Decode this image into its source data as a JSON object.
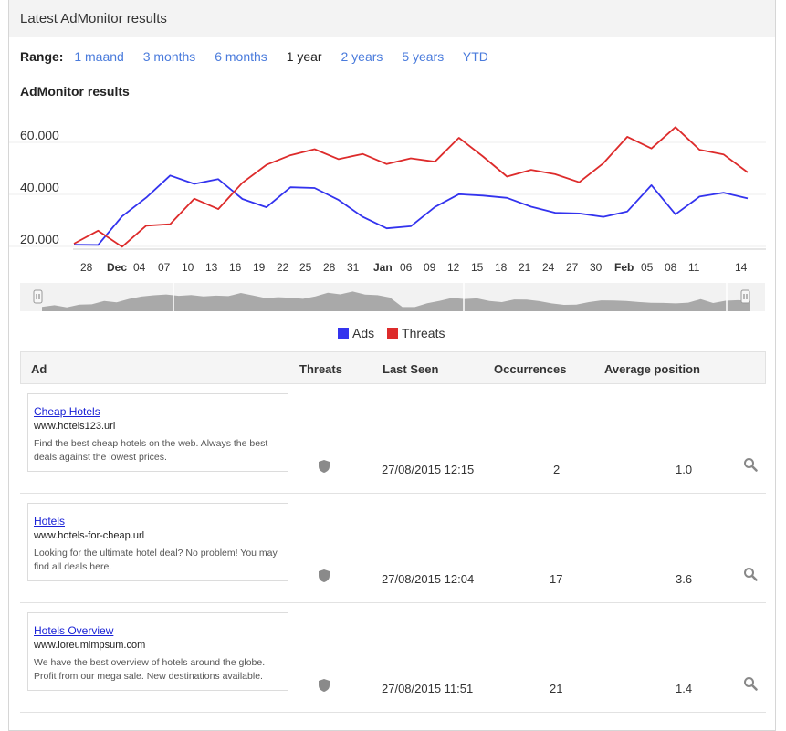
{
  "panel": {
    "title": "Latest AdMonitor results"
  },
  "range": {
    "label": "Range:",
    "options": [
      "1 maand",
      "3 months",
      "6 months",
      "1 year",
      "2 years",
      "5 years",
      "YTD"
    ],
    "selected": "1 year"
  },
  "chart_data": {
    "type": "line",
    "title": "AdMonitor results",
    "y_ticks": [
      "20.000",
      "40.000",
      "60.000"
    ],
    "ylim": [
      20000,
      60000
    ],
    "x_tick_labels": [
      "28",
      "Dec",
      "04",
      "07",
      "10",
      "13",
      "16",
      "19",
      "22",
      "25",
      "28",
      "31",
      "Jan",
      "06",
      "09",
      "12",
      "15",
      "18",
      "21",
      "24",
      "27",
      "30",
      "Feb",
      "05",
      "08",
      "11",
      "14"
    ],
    "x_tick_bold": [
      "Dec",
      "Jan",
      "Feb"
    ],
    "series": [
      {
        "name": "Ads",
        "color": "#3333ee",
        "values": [
          19600,
          19500,
          30500,
          37700,
          46200,
          43000,
          44800,
          37200,
          34000,
          41700,
          41400,
          36800,
          30300,
          25900,
          26700,
          34100,
          39000,
          38500,
          37600,
          34200,
          31900,
          31600,
          30300,
          32400,
          42500,
          31300,
          38100,
          39600,
          37400
        ]
      },
      {
        "name": "Threats",
        "color": "#dd2b2b",
        "values": [
          20000,
          25000,
          18800,
          26900,
          27500,
          37300,
          33300,
          43400,
          50300,
          54000,
          56300,
          52500,
          54500,
          50600,
          52800,
          51500,
          60700,
          53500,
          45800,
          48400,
          46700,
          43600,
          50900,
          61100,
          56600,
          64800,
          56100,
          54300,
          47400
        ]
      }
    ],
    "legend": [
      "Ads",
      "Threats"
    ],
    "legend_position": "bottom"
  },
  "table": {
    "headers": {
      "ad": "Ad",
      "threats": "Threats",
      "last_seen": "Last Seen",
      "occurrences": "Occurrences",
      "avg_position": "Average position"
    },
    "rows": [
      {
        "title": "Cheap Hotels",
        "url": "www.hotels123.url",
        "desc": "Find the best cheap hotels on the web. Always the best deals against the lowest prices.",
        "last_seen": "27/08/2015 12:15",
        "occurrences": "2",
        "avg_position": "1.0"
      },
      {
        "title": "Hotels",
        "url": "www.hotels-for-cheap.url",
        "desc": "Looking for the ultimate hotel deal? No problem! You may find all deals here.",
        "last_seen": "27/08/2015 12:04",
        "occurrences": "17",
        "avg_position": "3.6"
      },
      {
        "title": "Hotels Overview",
        "url": "www.loreumimpsum.com",
        "desc": "We have the best overview of hotels around the globe. Profit from our mega sale. New destinations available.",
        "last_seen": "27/08/2015 11:51",
        "occurrences": "21",
        "avg_position": "1.4"
      }
    ]
  },
  "icons": {
    "threat": "shield-icon",
    "inspect": "magnifier-icon"
  }
}
